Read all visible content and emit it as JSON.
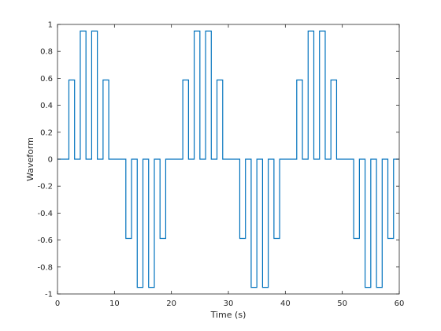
{
  "chart_data": {
    "type": "line",
    "step": true,
    "title": "",
    "xlabel": "Time (s)",
    "ylabel": "Waveform",
    "xlim": [
      0,
      60
    ],
    "ylim": [
      -1,
      1
    ],
    "grid": false,
    "xticks": [
      0,
      10,
      20,
      30,
      40,
      50,
      60
    ],
    "xtick_labels": [
      "0",
      "10",
      "20",
      "30",
      "40",
      "50",
      "60"
    ],
    "yticks": [
      1,
      0.8,
      0.6,
      0.4,
      0.2,
      0,
      -0.2,
      -0.4,
      -0.6,
      -0.8,
      -1
    ],
    "ytick_labels": [
      "1",
      "0.8",
      "0.6",
      "0.4",
      "0.2",
      "0",
      "-0.2",
      "-0.4",
      "-0.6",
      "-0.8",
      "-1"
    ],
    "series": [
      {
        "color": "#0072BD",
        "x": [
          0,
          1,
          2,
          3,
          4,
          5,
          6,
          7,
          8,
          9,
          10,
          11,
          12,
          13,
          14,
          15,
          16,
          17,
          18,
          19,
          20,
          21,
          22,
          23,
          24,
          25,
          26,
          27,
          28,
          29,
          30,
          31,
          32,
          33,
          34,
          35,
          36,
          37,
          38,
          39,
          40,
          41,
          42,
          43,
          44,
          45,
          46,
          47,
          48,
          49,
          50,
          51,
          52,
          53,
          54,
          55,
          56,
          57,
          58,
          59,
          60
        ],
        "y": [
          0,
          0,
          0.5878,
          0,
          0.9511,
          0,
          0.9511,
          0,
          0.5878,
          0,
          0,
          0,
          -0.5878,
          0,
          -0.9511,
          0,
          -0.9511,
          0,
          -0.5878,
          0,
          0,
          0,
          0.5878,
          0,
          0.9511,
          0,
          0.9511,
          0,
          0.5878,
          0,
          0,
          0,
          -0.5878,
          0,
          -0.9511,
          0,
          -0.9511,
          0,
          -0.5878,
          0,
          0,
          0,
          0.5878,
          0,
          0.9511,
          0,
          0.9511,
          0,
          0.5878,
          0,
          0,
          0,
          -0.5878,
          0,
          -0.9511,
          0,
          -0.9511,
          0,
          -0.5878,
          0,
          0
        ]
      }
    ]
  }
}
